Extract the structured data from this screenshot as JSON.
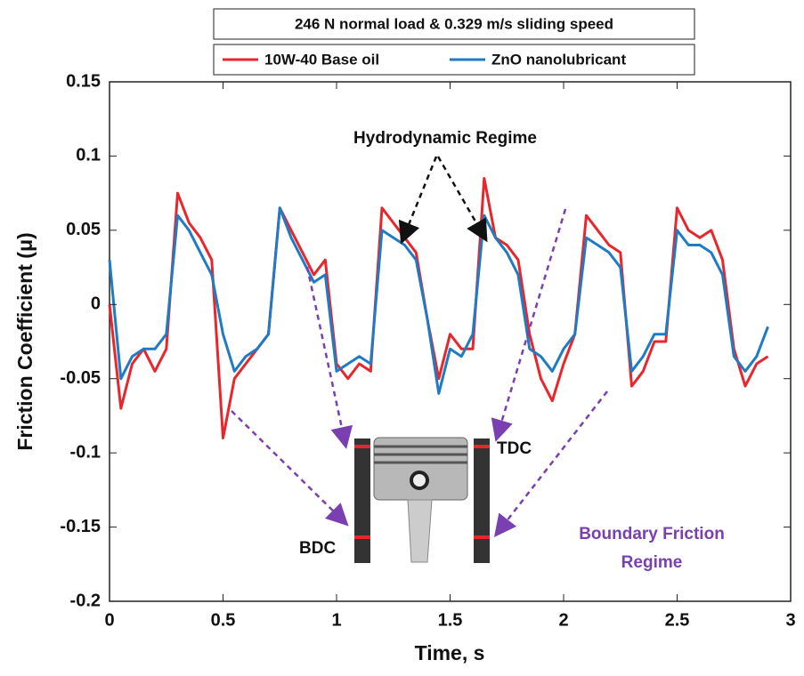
{
  "chart_data": {
    "type": "line",
    "title": "246 N normal load & 0.329 m/s sliding speed",
    "x_label": "Time, s",
    "y_label": "Friction Coefficient (μ)",
    "annotations": [
      "Hydrodynamic Regime",
      "Boundary Friction",
      "Regime",
      "TDC",
      "BDC"
    ],
    "x": [
      0,
      0.05,
      0.1,
      0.15,
      0.2,
      0.25,
      0.3,
      0.35,
      0.4,
      0.45,
      0.5,
      0.55,
      0.6,
      0.65,
      0.7,
      0.75,
      0.8,
      0.85,
      0.9,
      0.95,
      1.0,
      1.05,
      1.1,
      1.15,
      1.2,
      1.25,
      1.3,
      1.35,
      1.4,
      1.45,
      1.5,
      1.55,
      1.6,
      1.65,
      1.7,
      1.75,
      1.8,
      1.85,
      1.9,
      1.95,
      2.0,
      2.05,
      2.1,
      2.15,
      2.2,
      2.25,
      2.3,
      2.35,
      2.4,
      2.45,
      2.5,
      2.55,
      2.6,
      2.65,
      2.7,
      2.75,
      2.8,
      2.85,
      2.9
    ],
    "series": [
      {
        "name": "10W-40 Base oil",
        "color": "#e8262b",
        "values": [
          0.0,
          -0.07,
          -0.04,
          -0.03,
          -0.045,
          -0.03,
          0.075,
          0.055,
          0.045,
          0.03,
          -0.09,
          -0.05,
          -0.04,
          -0.03,
          -0.02,
          0.065,
          0.05,
          0.035,
          0.02,
          0.03,
          -0.04,
          -0.05,
          -0.04,
          -0.045,
          0.065,
          0.055,
          0.045,
          0.035,
          -0.01,
          -0.05,
          -0.02,
          -0.03,
          -0.03,
          0.085,
          0.045,
          0.04,
          0.03,
          -0.02,
          -0.05,
          -0.065,
          -0.04,
          -0.02,
          0.06,
          0.05,
          0.04,
          0.035,
          -0.055,
          -0.045,
          -0.025,
          -0.025,
          0.065,
          0.05,
          0.045,
          0.05,
          0.03,
          -0.03,
          -0.055,
          -0.04,
          -0.035
        ]
      },
      {
        "name": "ZnO nanolubricant",
        "color": "#1f7bc4",
        "values": [
          0.03,
          -0.05,
          -0.035,
          -0.03,
          -0.03,
          -0.02,
          0.06,
          0.05,
          0.035,
          0.02,
          -0.02,
          -0.045,
          -0.035,
          -0.03,
          -0.02,
          0.065,
          0.045,
          0.03,
          0.015,
          0.02,
          -0.045,
          -0.04,
          -0.035,
          -0.04,
          0.05,
          0.045,
          0.04,
          0.03,
          -0.01,
          -0.06,
          -0.03,
          -0.035,
          -0.02,
          0.06,
          0.045,
          0.035,
          0.02,
          -0.03,
          -0.035,
          -0.045,
          -0.03,
          -0.02,
          0.045,
          0.04,
          0.035,
          0.025,
          -0.045,
          -0.035,
          -0.02,
          -0.02,
          0.05,
          0.04,
          0.04,
          0.035,
          0.02,
          -0.035,
          -0.045,
          -0.035,
          -0.015
        ]
      }
    ],
    "xlim": [
      0,
      3
    ],
    "xticks": [
      0,
      0.5,
      1,
      1.5,
      2,
      2.5,
      3
    ],
    "ylim": [
      -0.2,
      0.15
    ],
    "yticks": [
      -0.2,
      -0.15,
      -0.1,
      -0.05,
      0,
      0.05,
      0.1,
      0.15
    ],
    "grid": false
  }
}
